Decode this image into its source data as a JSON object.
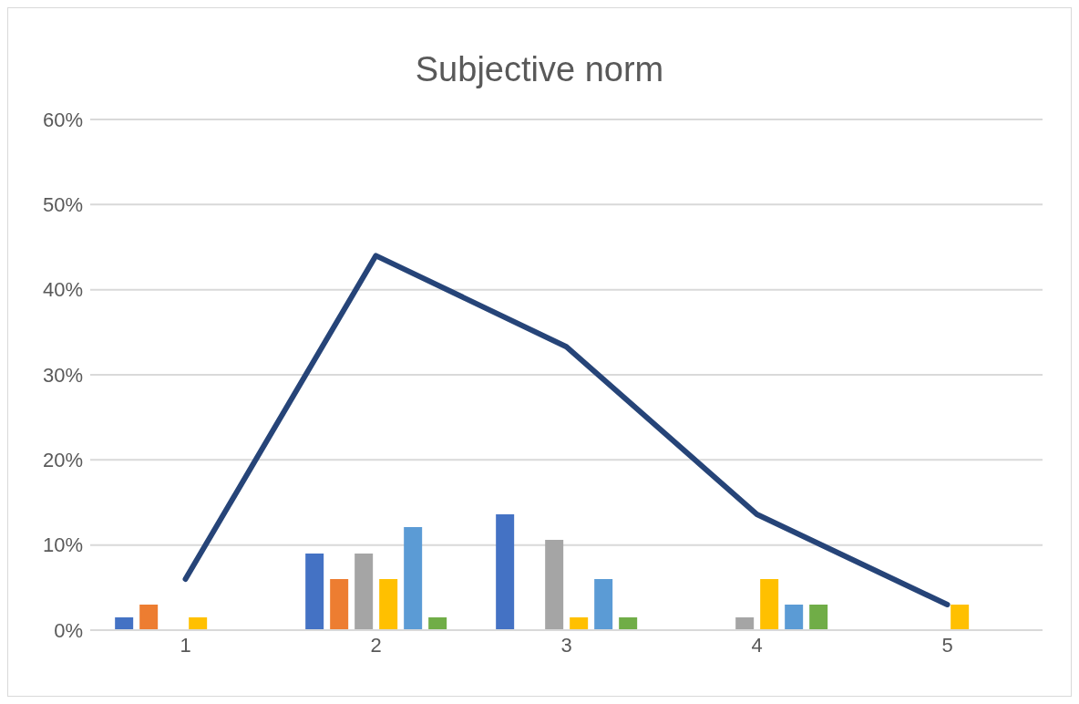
{
  "chart_data": {
    "type": "bar",
    "title": "Subjective norm",
    "categories": [
      "1",
      "2",
      "3",
      "4",
      "5"
    ],
    "series": [
      {
        "color": "#4472c4",
        "values": [
          1.5,
          9,
          13.6,
          0,
          0
        ]
      },
      {
        "color": "#ed7d31",
        "values": [
          3,
          6,
          0,
          0,
          0
        ]
      },
      {
        "color": "#a5a5a5",
        "values": [
          0,
          9,
          10.6,
          1.5,
          0
        ]
      },
      {
        "color": "#ffc000",
        "values": [
          1.5,
          6,
          1.5,
          6,
          3
        ]
      },
      {
        "color": "#5b9bd5",
        "values": [
          0,
          12.1,
          6,
          3,
          0
        ]
      },
      {
        "color": "#70ad47",
        "values": [
          0,
          1.5,
          1.5,
          3,
          0
        ]
      },
      {
        "type": "line",
        "color": "#264478",
        "values": [
          6,
          44,
          33.3,
          13.6,
          3
        ]
      }
    ],
    "ylim": [
      0,
      60
    ],
    "yticks": [
      {
        "value": 0,
        "label": "0%"
      },
      {
        "value": 10,
        "label": "10%"
      },
      {
        "value": 20,
        "label": "20%"
      },
      {
        "value": 30,
        "label": "30%"
      },
      {
        "value": 40,
        "label": "40%"
      },
      {
        "value": 50,
        "label": "50%"
      },
      {
        "value": 60,
        "label": "60%"
      }
    ],
    "grid": "y",
    "legend": false
  }
}
